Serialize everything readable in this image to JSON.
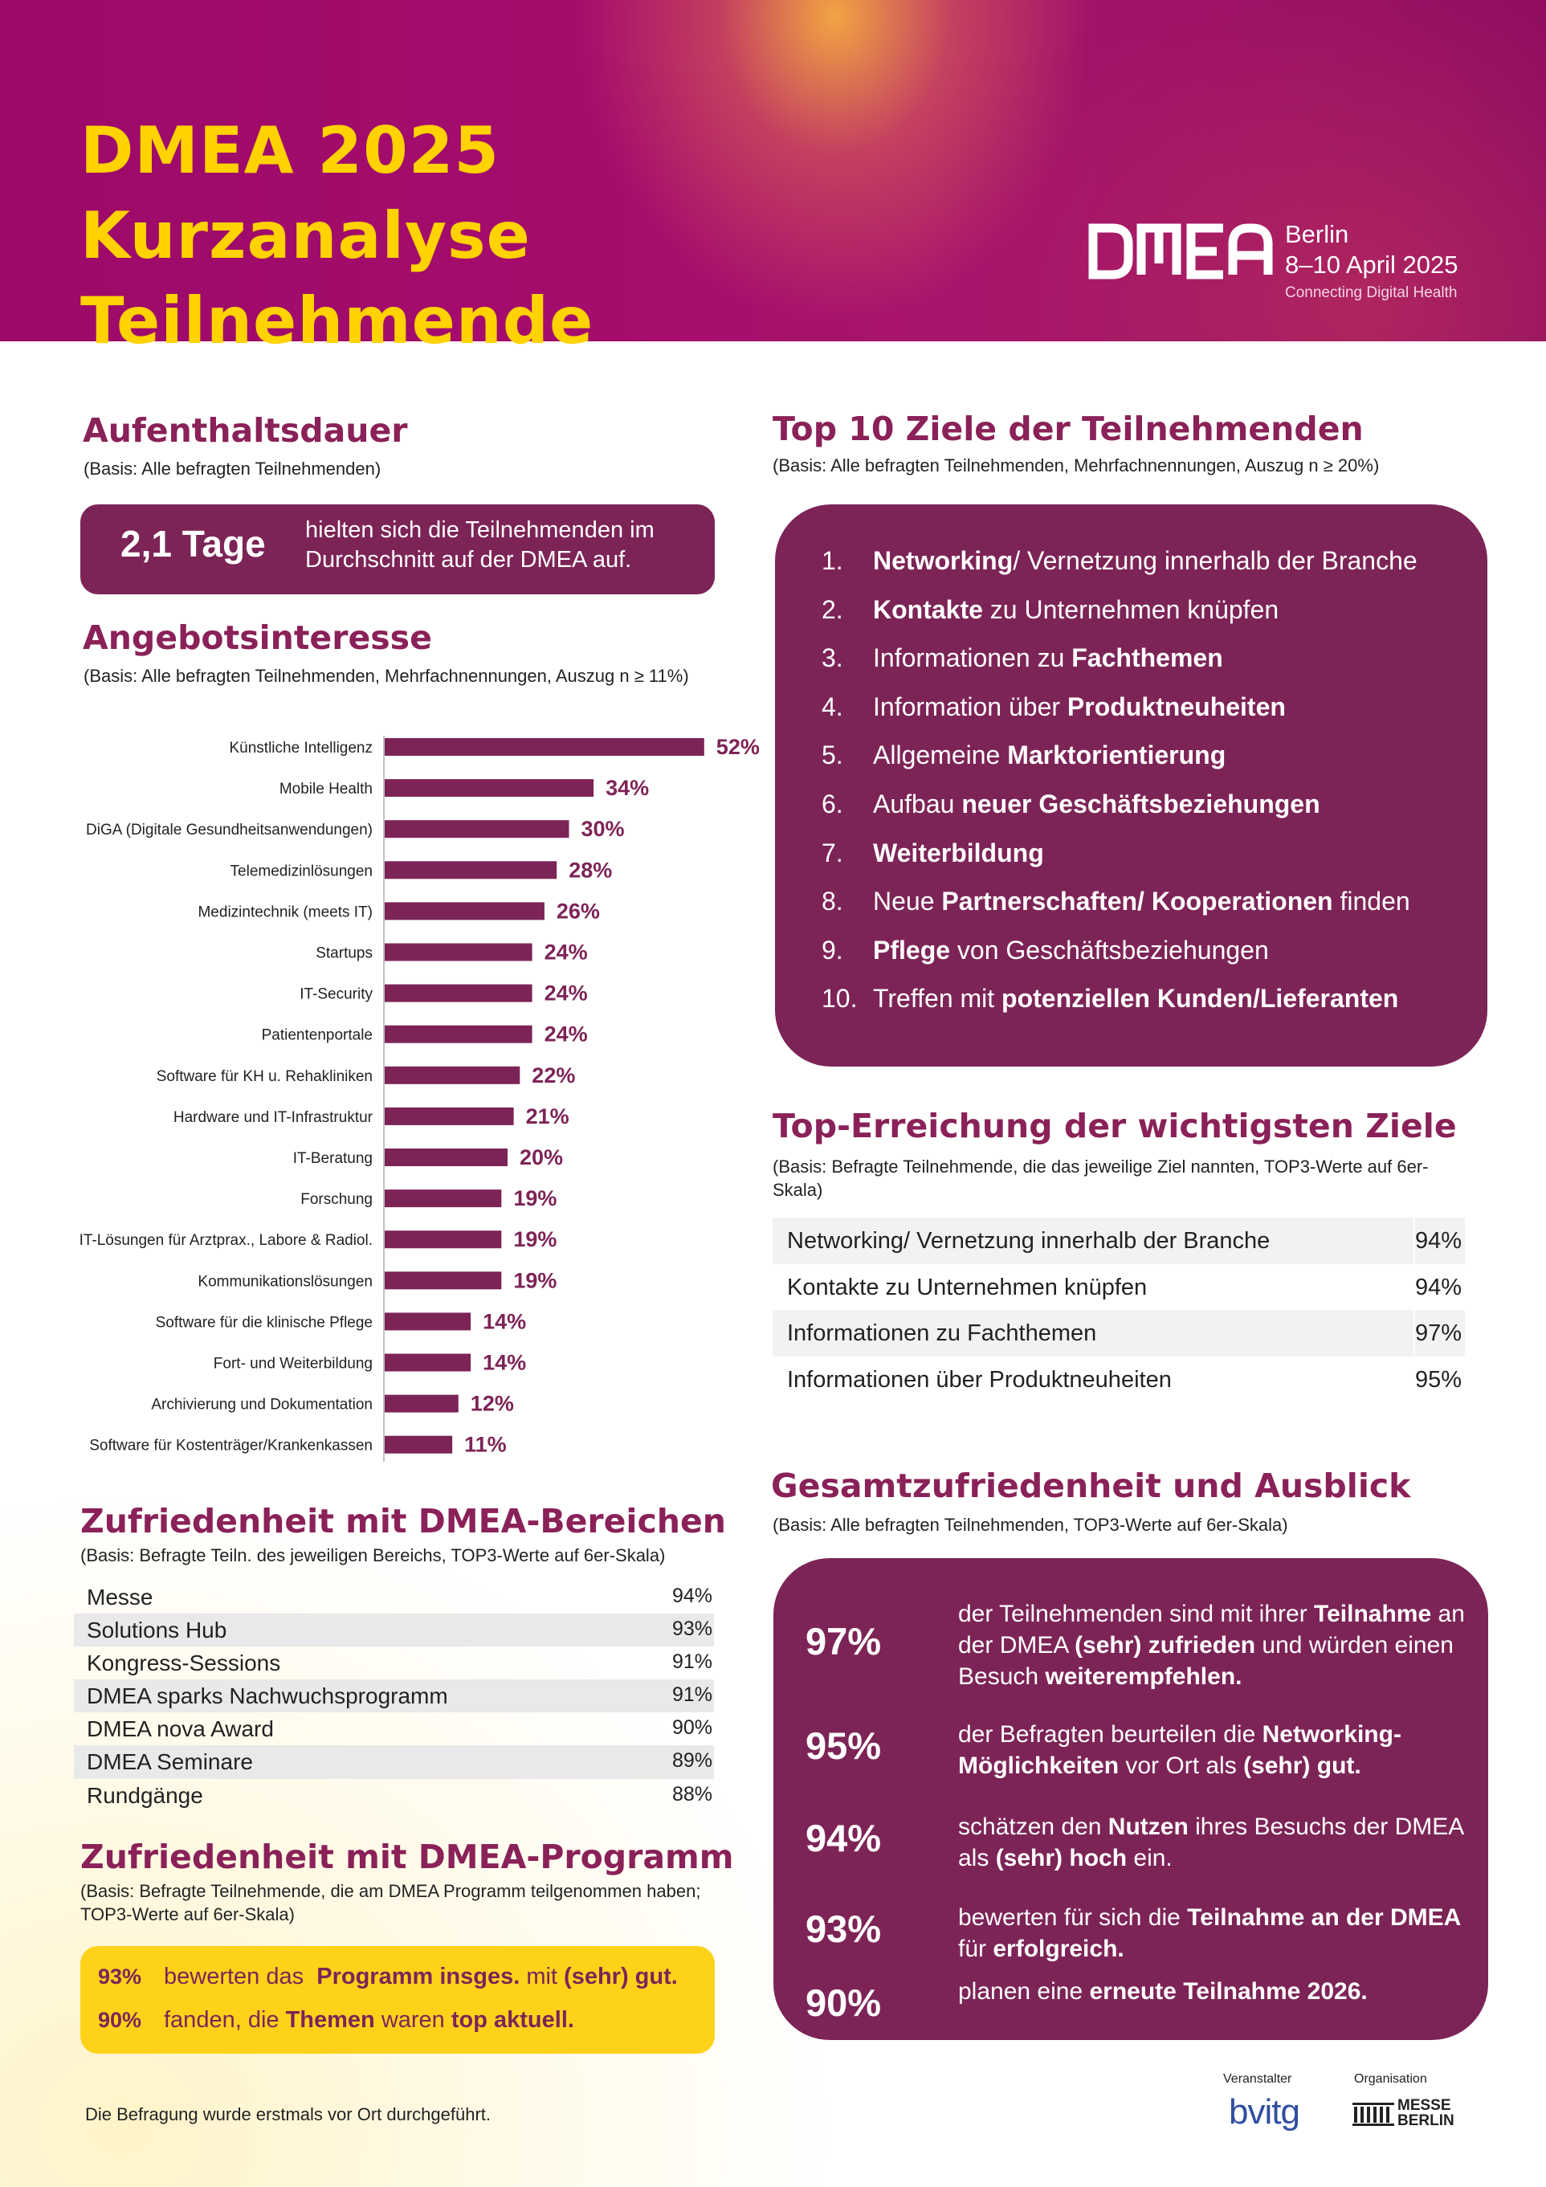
{
  "header": {
    "title_line1": "DMEA 2025 Kurzanalyse",
    "title_line2": "Teilnehmende",
    "logo_city": "Berlin",
    "logo_date": "8–10 April 2025",
    "logo_tagline": "Connecting Digital Health",
    "colors": {
      "primary": "#7d2457",
      "accent": "#ffd200"
    }
  },
  "stay": {
    "heading": "Aufenthaltsdauer",
    "basis": "(Basis: Alle befragten Teilnehmenden)",
    "value": "2,1 Tage",
    "text": "hielten sich die Teilnehmenden im Durchschnitt auf der DMEA auf."
  },
  "interest": {
    "heading": "Angebotsinteresse",
    "basis": "(Basis: Alle befragten Teilnehmenden, Mehrfachnennungen, Auszug n ≥ 11%)"
  },
  "chart_data": {
    "type": "bar",
    "orientation": "horizontal",
    "categories": [
      "Künstliche Intelligenz",
      "Mobile Health",
      "DiGA (Digitale Gesundheitsanwendungen)",
      "Telemedizinlösungen",
      "Medizintechnik (meets IT)",
      "Startups",
      "IT-Security",
      "Patientenportale",
      "Software für KH u. Rehakliniken",
      "Hardware und IT-Infrastruktur",
      "IT-Beratung",
      "Forschung",
      "IT-Lösungen für Arztprax., Labore & Radiol.",
      "Kommunikationslösungen",
      "Software für die klinische Pflege",
      "Fort- und Weiterbildung",
      "Archivierung und Dokumentation",
      "Software für Kostenträger/Krankenkassen"
    ],
    "values": [
      52,
      34,
      30,
      28,
      26,
      24,
      24,
      24,
      22,
      21,
      20,
      19,
      19,
      19,
      14,
      14,
      12,
      11
    ],
    "value_labels": [
      "52%",
      "34%",
      "30%",
      "28%",
      "26%",
      "24%",
      "24%",
      "24%",
      "22%",
      "21%",
      "20%",
      "19%",
      "19%",
      "19%",
      "14%",
      "14%",
      "12%",
      "11%"
    ],
    "unit": "%",
    "bar_color": "#7d2457",
    "grid": false
  },
  "top10": {
    "heading": "Top 10 Ziele der Teilnehmenden",
    "basis": "(Basis: Alle befragten Teilnehmenden, Mehrfachnennungen, Auszug n ≥ 20%)",
    "items": [
      {
        "num": "1.",
        "pre": "",
        "bold": "Networking",
        "post": "/ Vernetzung innerhalb der Branche"
      },
      {
        "num": "2.",
        "pre": "",
        "bold": "Kontakte",
        "post": " zu Unternehmen knüpfen"
      },
      {
        "num": "3.",
        "pre": "Informationen zu ",
        "bold": "Fachthemen",
        "post": ""
      },
      {
        "num": "4.",
        "pre": "Information über ",
        "bold": "Produktneuheiten",
        "post": ""
      },
      {
        "num": "5.",
        "pre": "Allgemeine ",
        "bold": "Marktorientierung",
        "post": ""
      },
      {
        "num": "6.",
        "pre": "Aufbau ",
        "bold": "neuer Geschäftsbeziehungen",
        "post": ""
      },
      {
        "num": "7.",
        "pre": "",
        "bold": "Weiterbildung",
        "post": ""
      },
      {
        "num": "8.",
        "pre": "Neue ",
        "bold": "Partnerschaften/ Kooperationen",
        "post": " finden"
      },
      {
        "num": "9.",
        "pre": "",
        "bold": "Pflege",
        "post": " von Geschäftsbeziehungen"
      },
      {
        "num": "10.",
        "pre": "Treffen mit ",
        "bold": "potenziellen Kunden/Lieferanten",
        "post": ""
      }
    ]
  },
  "goals": {
    "heading": "Top-Erreichung der wichtigsten Ziele",
    "basis": "(Basis: Befragte Teilnehmende, die das jeweilige Ziel nannten, TOP3-Werte auf 6er-Skala)",
    "rows": [
      {
        "label": "Networking/ Vernetzung innerhalb der Branche",
        "value": "94%"
      },
      {
        "label": "Kontakte zu Unternehmen knüpfen",
        "value": "94%"
      },
      {
        "label": "Informationen zu Fachthemen",
        "value": "97%"
      },
      {
        "label": "Informationen über Produktneuheiten",
        "value": "95%"
      }
    ]
  },
  "areas": {
    "heading": "Zufriedenheit mit DMEA-Bereichen",
    "basis": "(Basis: Befragte Teiln. des jeweiligen Bereichs, TOP3-Werte auf 6er-Skala)",
    "rows": [
      {
        "label": "Messe",
        "value": "94%"
      },
      {
        "label": "Solutions Hub",
        "value": "93%"
      },
      {
        "label": "Kongress-Sessions",
        "value": "91%"
      },
      {
        "label": "DMEA sparks Nachwuchsprogramm",
        "value": "91%"
      },
      {
        "label": "DMEA nova Award",
        "value": "90%"
      },
      {
        "label": "DMEA Seminare",
        "value": "89%"
      },
      {
        "label": "Rundgänge",
        "value": "88%"
      }
    ]
  },
  "program": {
    "heading": "Zufriedenheit mit DMEA-Programm",
    "basis": "(Basis: Befragte Teilnehmende, die am DMEA Programm teilgenommen haben; TOP3-Werte auf 6er-Skala)",
    "row1": {
      "pct": "93%",
      "pre": "bewerten das  ",
      "bold": "Programm insges.",
      "mid": " mit ",
      "bold2": "(sehr) gut."
    },
    "row2": {
      "pct": "90%",
      "pre": "fanden, die ",
      "bold": "Themen",
      "mid": " waren ",
      "bold2": "top aktuell."
    }
  },
  "overall": {
    "heading": "Gesamtzufriedenheit und Ausblick",
    "basis": "(Basis: Alle befragten Teilnehmenden, TOP3-Werte auf 6er-Skala)",
    "items": [
      {
        "pct": "97%",
        "html": "der Teilnehmenden sind mit ihrer <b>Teilnahme</b> an der DMEA <b>(sehr) zufrieden</b> und würden einen Besuch <b>weiterempfehlen.</b>"
      },
      {
        "pct": "95%",
        "html": "der Befragten beurteilen die <b>Networking-Möglichkeiten</b> vor Ort als <b>(sehr) gut.</b>"
      },
      {
        "pct": "94%",
        "html": "schätzen den <b>Nutzen</b> ihres Besuchs der DMEA als <b>(sehr) hoch</b> ein."
      },
      {
        "pct": "93%",
        "html": "bewerten für sich die <b>Teilnahme an der DMEA</b> für <b>erfolgreich.</b>"
      },
      {
        "pct": "90%",
        "html": "planen eine <b>erneute Teilnahme 2026.</b>"
      }
    ]
  },
  "footer": {
    "note": "Die Befragung wurde erstmals vor Ort durchgeführt.",
    "organizer_label": "Veranstalter",
    "organizer_logo": "bvitg",
    "organisation_label": "Organisation",
    "organisation_logo_line1": "MESSE",
    "organisation_logo_line2": "BERLIN"
  }
}
